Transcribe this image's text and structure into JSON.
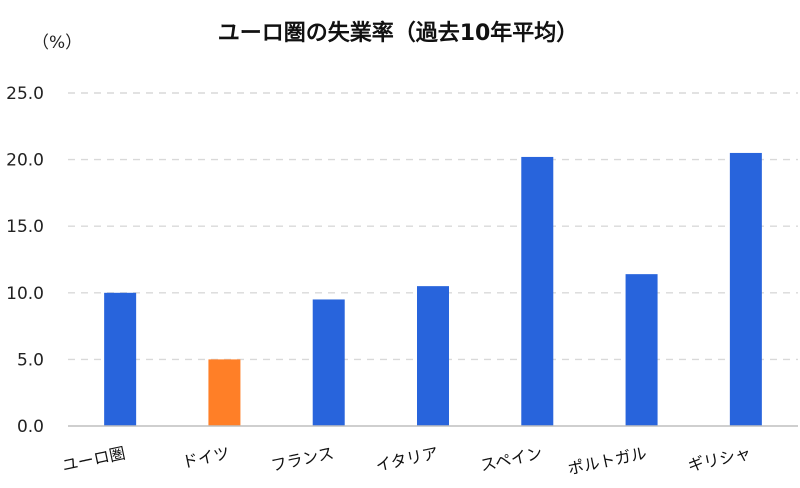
{
  "chart_data": {
    "type": "bar",
    "title": "ユーロ圏の失業率（過去10年平均）",
    "unit_label": "（%）",
    "categories": [
      "ユーロ圏",
      "ドイツ",
      "フランス",
      "イタリア",
      "スペイン",
      "ポルトガル",
      "ギリシャ"
    ],
    "values": [
      10.0,
      5.0,
      9.5,
      10.5,
      20.2,
      11.4,
      20.5
    ],
    "ylim": [
      0,
      25
    ],
    "yticks": [
      "0.0",
      "5.0",
      "10.0",
      "15.0",
      "20.0",
      "25.0"
    ],
    "grid": true,
    "colors": {
      "default": "#2864DC",
      "highlight": "#FF7F27",
      "grid": "#D9D9D9",
      "axis": "#BFBFBF"
    },
    "highlight_index": 1
  }
}
